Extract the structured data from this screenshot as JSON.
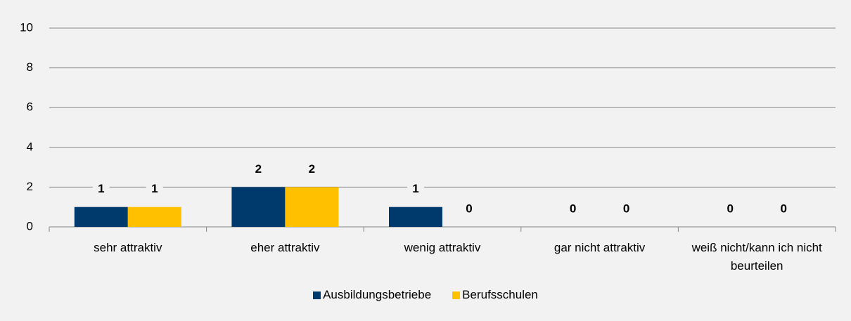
{
  "chart_data": {
    "type": "bar",
    "categories": [
      "sehr attraktiv",
      "eher attraktiv",
      "wenig attraktiv",
      "gar nicht attraktiv",
      "weiß nicht/kann ich nicht beurteilen"
    ],
    "series": [
      {
        "name": "Ausbildungsbetriebe",
        "color": "#003a6c",
        "values": [
          1,
          2,
          1,
          0,
          0
        ]
      },
      {
        "name": "Berufsschulen",
        "color": "#ffc000",
        "values": [
          1,
          2,
          0,
          0,
          0
        ]
      }
    ],
    "ylim": [
      0,
      10
    ],
    "yticks": [
      0,
      2,
      4,
      6,
      8,
      10
    ],
    "grid": true,
    "legend": "bottom"
  }
}
